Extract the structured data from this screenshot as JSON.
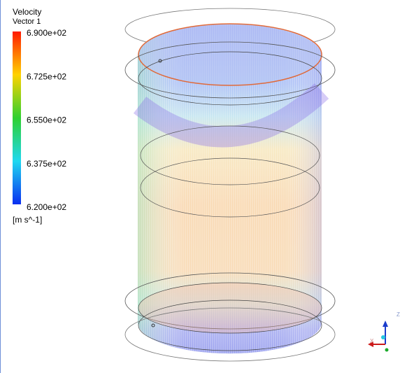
{
  "legend": {
    "title": "Velocity",
    "subtitle": "Vector 1",
    "ticks": [
      "6.900e+02",
      "6.725e+02",
      "6.550e+02",
      "6.375e+02",
      "6.200e+02"
    ],
    "unit": "[m s^-1]"
  },
  "axes": {
    "z": "Z",
    "x": "X"
  }
}
